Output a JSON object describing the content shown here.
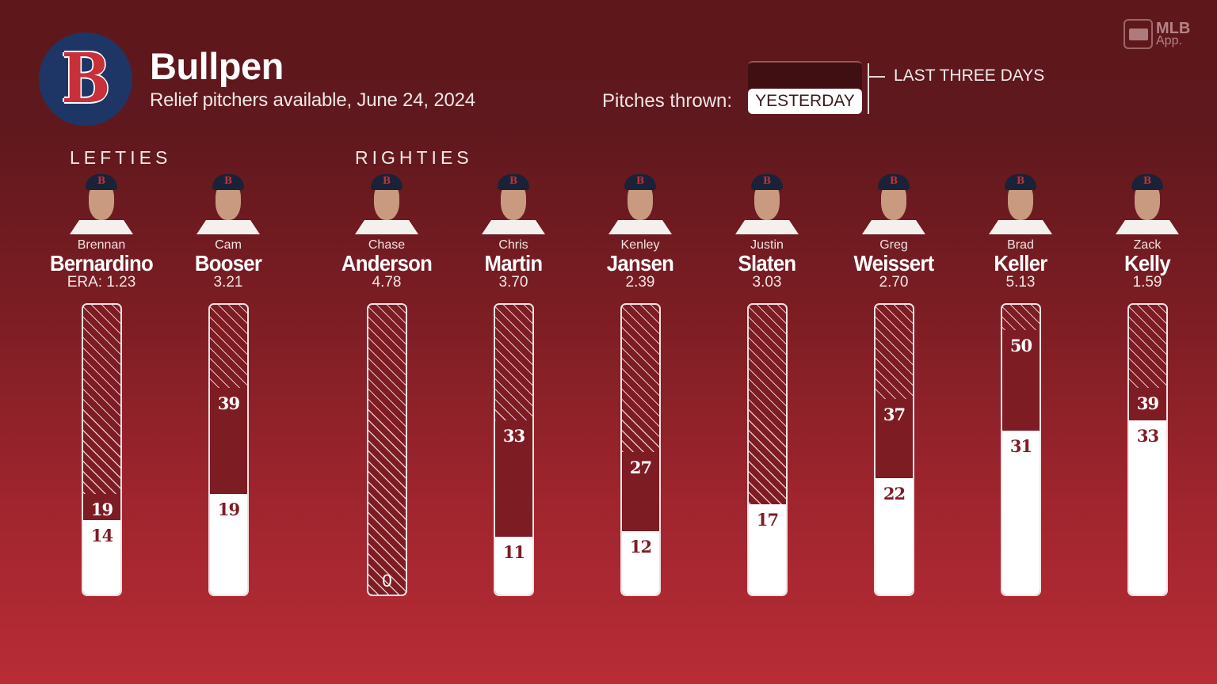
{
  "header": {
    "team_logo_letter": "B",
    "title": "Bullpen",
    "subtitle": "Relief pitchers available, June 24, 2024",
    "brand": {
      "line1": "MLB",
      "line2": "App."
    }
  },
  "legend": {
    "pitches_label": "Pitches thrown:",
    "yesterday_label": "YESTERDAY",
    "last_three_label": "LAST THREE DAYS"
  },
  "groups": {
    "lefties": "LEFTIES",
    "righties": "RIGHTIES"
  },
  "colors": {
    "background_top": "#5e181c",
    "background_bottom": "#b82c36",
    "last_three_days": "#7e1c24",
    "yesterday": "#ffffff",
    "logo_navy": "#1d3665",
    "logo_red": "#c8303a"
  },
  "players": [
    {
      "first": "Brennan",
      "last": "Bernardino",
      "era": "ERA: 1.23",
      "yesterday": "14",
      "three": "19",
      "hand": "L"
    },
    {
      "first": "Cam",
      "last": "Booser",
      "era": "3.21",
      "yesterday": "19",
      "three": "39",
      "hand": "L"
    },
    {
      "first": "Chase",
      "last": "Anderson",
      "era": "4.78",
      "yesterday": "0",
      "three": "0",
      "hand": "R"
    },
    {
      "first": "Chris",
      "last": "Martin",
      "era": "3.70",
      "yesterday": "11",
      "three": "33",
      "hand": "R"
    },
    {
      "first": "Kenley",
      "last": "Jansen",
      "era": "2.39",
      "yesterday": "12",
      "three": "27",
      "hand": "R"
    },
    {
      "first": "Justin",
      "last": "Slaten",
      "era": "3.03",
      "yesterday": "17",
      "three": "17",
      "hand": "R"
    },
    {
      "first": "Greg",
      "last": "Weissert",
      "era": "2.70",
      "yesterday": "22",
      "three": "37",
      "hand": "R"
    },
    {
      "first": "Brad",
      "last": "Keller",
      "era": "5.13",
      "yesterday": "31",
      "three": "50",
      "hand": "R"
    },
    {
      "first": "Zack",
      "last": "Kelly",
      "era": "1.59",
      "yesterday": "33",
      "three": "39",
      "hand": "R"
    }
  ],
  "chart_data": {
    "type": "bar",
    "title": "Bullpen",
    "subtitle": "Relief pitchers available, June 24, 2024",
    "xlabel": "",
    "ylabel": "Pitches thrown",
    "orientation": "vertical",
    "stacked": "overlaid",
    "grid": false,
    "ylim": [
      0,
      55
    ],
    "legend": [
      "YESTERDAY",
      "LAST THREE DAYS"
    ],
    "categories": [
      "Brennan Bernardino",
      "Cam Booser",
      "Chase Anderson",
      "Chris Martin",
      "Kenley Jansen",
      "Justin Slaten",
      "Greg Weissert",
      "Brad Keller",
      "Zack Kelly"
    ],
    "groups": [
      {
        "name": "LEFTIES",
        "categories": [
          "Brennan Bernardino",
          "Cam Booser"
        ]
      },
      {
        "name": "RIGHTIES",
        "categories": [
          "Chase Anderson",
          "Chris Martin",
          "Kenley Jansen",
          "Justin Slaten",
          "Greg Weissert",
          "Brad Keller",
          "Zack Kelly"
        ]
      }
    ],
    "series": [
      {
        "name": "Yesterday",
        "values": [
          14,
          19,
          0,
          11,
          12,
          17,
          22,
          31,
          33
        ]
      },
      {
        "name": "Last three days",
        "values": [
          19,
          39,
          0,
          33,
          27,
          17,
          37,
          50,
          39
        ]
      }
    ],
    "era": [
      1.23,
      3.21,
      4.78,
      3.7,
      2.39,
      3.03,
      2.7,
      5.13,
      1.59
    ]
  }
}
